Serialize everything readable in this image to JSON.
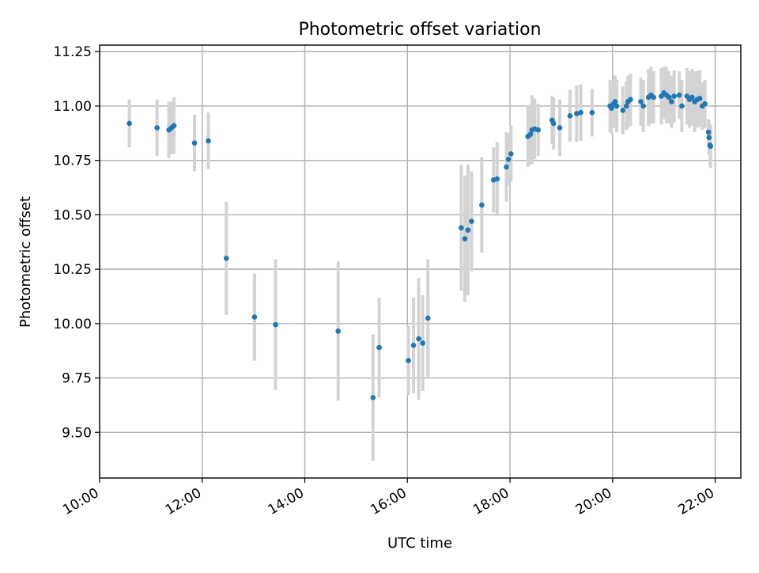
{
  "chart_data": {
    "type": "scatter",
    "title": "Photometric offset variation",
    "xlabel": "UTC time",
    "ylabel": "Photometric offset",
    "x_unit": "hour",
    "xlim": [
      10.0,
      22.5
    ],
    "ylim": [
      9.29,
      11.28
    ],
    "xticks": [
      10,
      12,
      14,
      16,
      18,
      20,
      22
    ],
    "xtick_labels": [
      "10:00",
      "12:00",
      "14:00",
      "16:00",
      "18:00",
      "20:00",
      "22:00"
    ],
    "yticks": [
      9.5,
      9.75,
      10.0,
      10.25,
      10.5,
      10.75,
      11.0,
      11.25
    ],
    "ytick_labels": [
      "9.50",
      "9.75",
      "10.00",
      "10.25",
      "10.50",
      "10.75",
      "11.00",
      "11.25"
    ],
    "grid": true,
    "colors": {
      "point": "#1f77b4",
      "errorbar": "#d3d3d3",
      "grid": "#b0b0b0"
    },
    "series": [
      {
        "x": [
          10.58,
          11.12,
          11.35,
          11.4,
          11.45,
          11.85,
          12.12,
          12.47,
          13.02,
          13.43,
          14.65,
          15.33,
          15.45,
          16.02,
          16.12,
          16.22,
          16.3,
          16.4,
          17.05,
          17.12,
          17.18,
          17.25,
          17.45,
          17.68,
          17.75,
          17.93,
          17.97,
          18.02,
          18.35,
          18.4,
          18.43,
          18.48,
          18.55,
          18.82,
          18.85,
          18.97,
          19.17,
          19.3,
          19.38,
          19.6,
          19.95,
          19.98,
          20.02,
          20.05,
          20.08,
          20.2,
          20.27,
          20.3,
          20.35,
          20.55,
          20.6,
          20.7,
          20.75,
          20.8,
          20.95,
          21.0,
          21.05,
          21.1,
          21.15,
          21.2,
          21.3,
          21.35,
          21.45,
          21.5,
          21.55,
          21.6,
          21.65,
          21.7,
          21.75,
          21.8,
          21.87,
          21.88,
          21.9,
          21.91
        ],
        "y": [
          10.92,
          10.9,
          10.89,
          10.9,
          10.91,
          10.83,
          10.84,
          10.3,
          10.03,
          9.995,
          9.965,
          9.66,
          9.89,
          9.83,
          9.9,
          9.93,
          9.91,
          10.025,
          10.44,
          10.39,
          10.43,
          10.47,
          10.545,
          10.66,
          10.665,
          10.72,
          10.755,
          10.78,
          10.86,
          10.87,
          10.89,
          10.895,
          10.89,
          10.935,
          10.92,
          10.9,
          10.955,
          10.965,
          10.97,
          10.97,
          11.0,
          10.99,
          11.01,
          11.02,
          11.0,
          10.98,
          11.0,
          11.02,
          11.03,
          11.02,
          11.0,
          11.04,
          11.05,
          11.04,
          11.045,
          11.06,
          11.05,
          11.04,
          11.02,
          11.045,
          11.05,
          11.0,
          11.045,
          11.03,
          11.04,
          11.02,
          11.03,
          11.035,
          11.0,
          11.01,
          10.88,
          10.855,
          10.82,
          10.815
        ],
        "err": [
          0.11,
          0.13,
          0.13,
          0.12,
          0.13,
          0.13,
          0.13,
          0.26,
          0.2,
          0.3,
          0.32,
          0.29,
          0.23,
          0.16,
          0.22,
          0.28,
          0.22,
          0.27,
          0.29,
          0.29,
          0.3,
          0.23,
          0.22,
          0.15,
          0.17,
          0.16,
          0.12,
          0.13,
          0.14,
          0.14,
          0.16,
          0.14,
          0.12,
          0.11,
          0.12,
          0.13,
          0.12,
          0.13,
          0.13,
          0.11,
          0.12,
          0.12,
          0.11,
          0.12,
          0.12,
          0.11,
          0.11,
          0.12,
          0.12,
          0.11,
          0.12,
          0.13,
          0.13,
          0.12,
          0.13,
          0.12,
          0.13,
          0.12,
          0.12,
          0.12,
          0.11,
          0.12,
          0.13,
          0.13,
          0.13,
          0.14,
          0.13,
          0.13,
          0.11,
          0.11,
          0.06,
          0.08,
          0.09,
          0.1
        ]
      }
    ]
  }
}
